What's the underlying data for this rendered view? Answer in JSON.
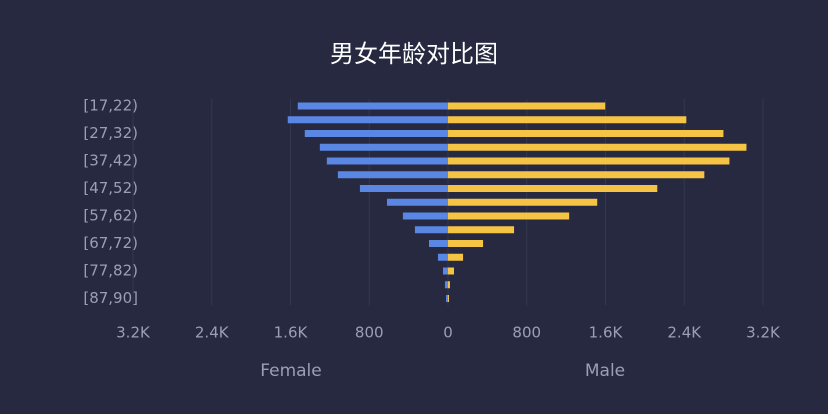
{
  "chart_data": [
    {
      "type": "bar",
      "orientation": "horizontal",
      "title": "男女年龄对比图",
      "xlabel": "Female",
      "categories": [
        "[17,22)",
        null,
        "[27,32)",
        null,
        "[37,42)",
        null,
        "[47,52)",
        null,
        "[57,62)",
        null,
        "[67,72)",
        null,
        "[77,82)",
        null,
        "[87,90]"
      ],
      "series": [
        {
          "name": "Female",
          "color": "#5a87e4",
          "values": [
            1526,
            1628,
            1455,
            1302,
            1231,
            1119,
            895,
            620,
            458,
            336,
            193,
            102,
            51,
            31,
            20
          ]
        }
      ],
      "xlim": [
        3200,
        0
      ],
      "xticks": [
        {
          "value": 3200,
          "label": "3.2K"
        },
        {
          "value": 2400,
          "label": "2.4K"
        },
        {
          "value": 1600,
          "label": "1.6K"
        },
        800,
        0
      ],
      "grid": true
    },
    {
      "type": "bar",
      "orientation": "horizontal",
      "xlabel": "Male",
      "series": [
        {
          "name": "Male",
          "color": "#f5c445",
          "values": [
            1597,
            2421,
            2798,
            3032,
            2859,
            2604,
            2126,
            1516,
            1231,
            671,
            356,
            153,
            61,
            20,
            10
          ]
        }
      ],
      "xlim": [
        0,
        3200
      ],
      "xticks": [
        800,
        {
          "value": 1600,
          "label": "1.6K"
        },
        {
          "value": 2400,
          "label": "2.4K"
        },
        {
          "value": 3200,
          "label": "3.2K"
        }
      ],
      "grid": true
    }
  ]
}
